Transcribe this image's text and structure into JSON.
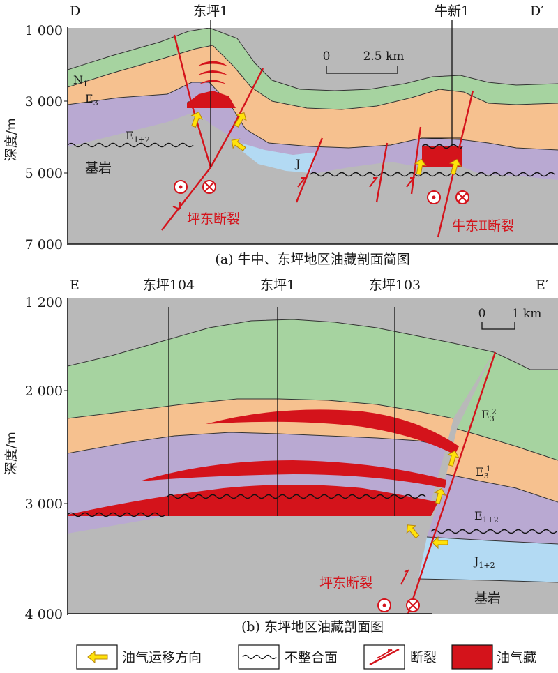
{
  "panel_a": {
    "left_end": "D",
    "right_end": "D′",
    "wells": [
      "东坪1",
      "牛新1"
    ],
    "depth_ticks": [
      "1 000",
      "3 000",
      "5 000",
      "7 000"
    ],
    "axis_label": "深度/m",
    "scale": {
      "start": "0",
      "end": "2.5 km"
    },
    "strata": [
      "N",
      "1",
      "E",
      "3",
      "E",
      "1+2",
      "J",
      "基岩"
    ],
    "faults": [
      "坪东断裂",
      "牛东Ⅱ断裂"
    ],
    "caption": "(a) 牛中、东坪地区油藏剖面简图"
  },
  "panel_b": {
    "left_end": "E",
    "right_end": "E′",
    "wells": [
      "东坪104",
      "东坪1",
      "东坪103"
    ],
    "depth_ticks": [
      "1 200",
      "2 000",
      "3 000",
      "4 000"
    ],
    "axis_label": "深度/m",
    "scale": {
      "start": "0",
      "end": "1 km"
    },
    "strata": [
      "E",
      "3",
      "2",
      "E",
      "3",
      "1",
      "E",
      "1+2",
      "J",
      "1+2",
      "基岩"
    ],
    "fault": "坪东断裂",
    "caption": "(b) 东坪地区油藏剖面图"
  },
  "legend": [
    "油气运移方向",
    "不整合面",
    "断裂",
    "油气藏"
  ],
  "colors": {
    "green": "#a6d3a0",
    "orange": "#f6c18f",
    "purple": "#b9a9d2",
    "blue": "#b3daf3",
    "gray": "#b9b9b9",
    "red": "#d4131b",
    "yellow": "#ffe20a"
  }
}
